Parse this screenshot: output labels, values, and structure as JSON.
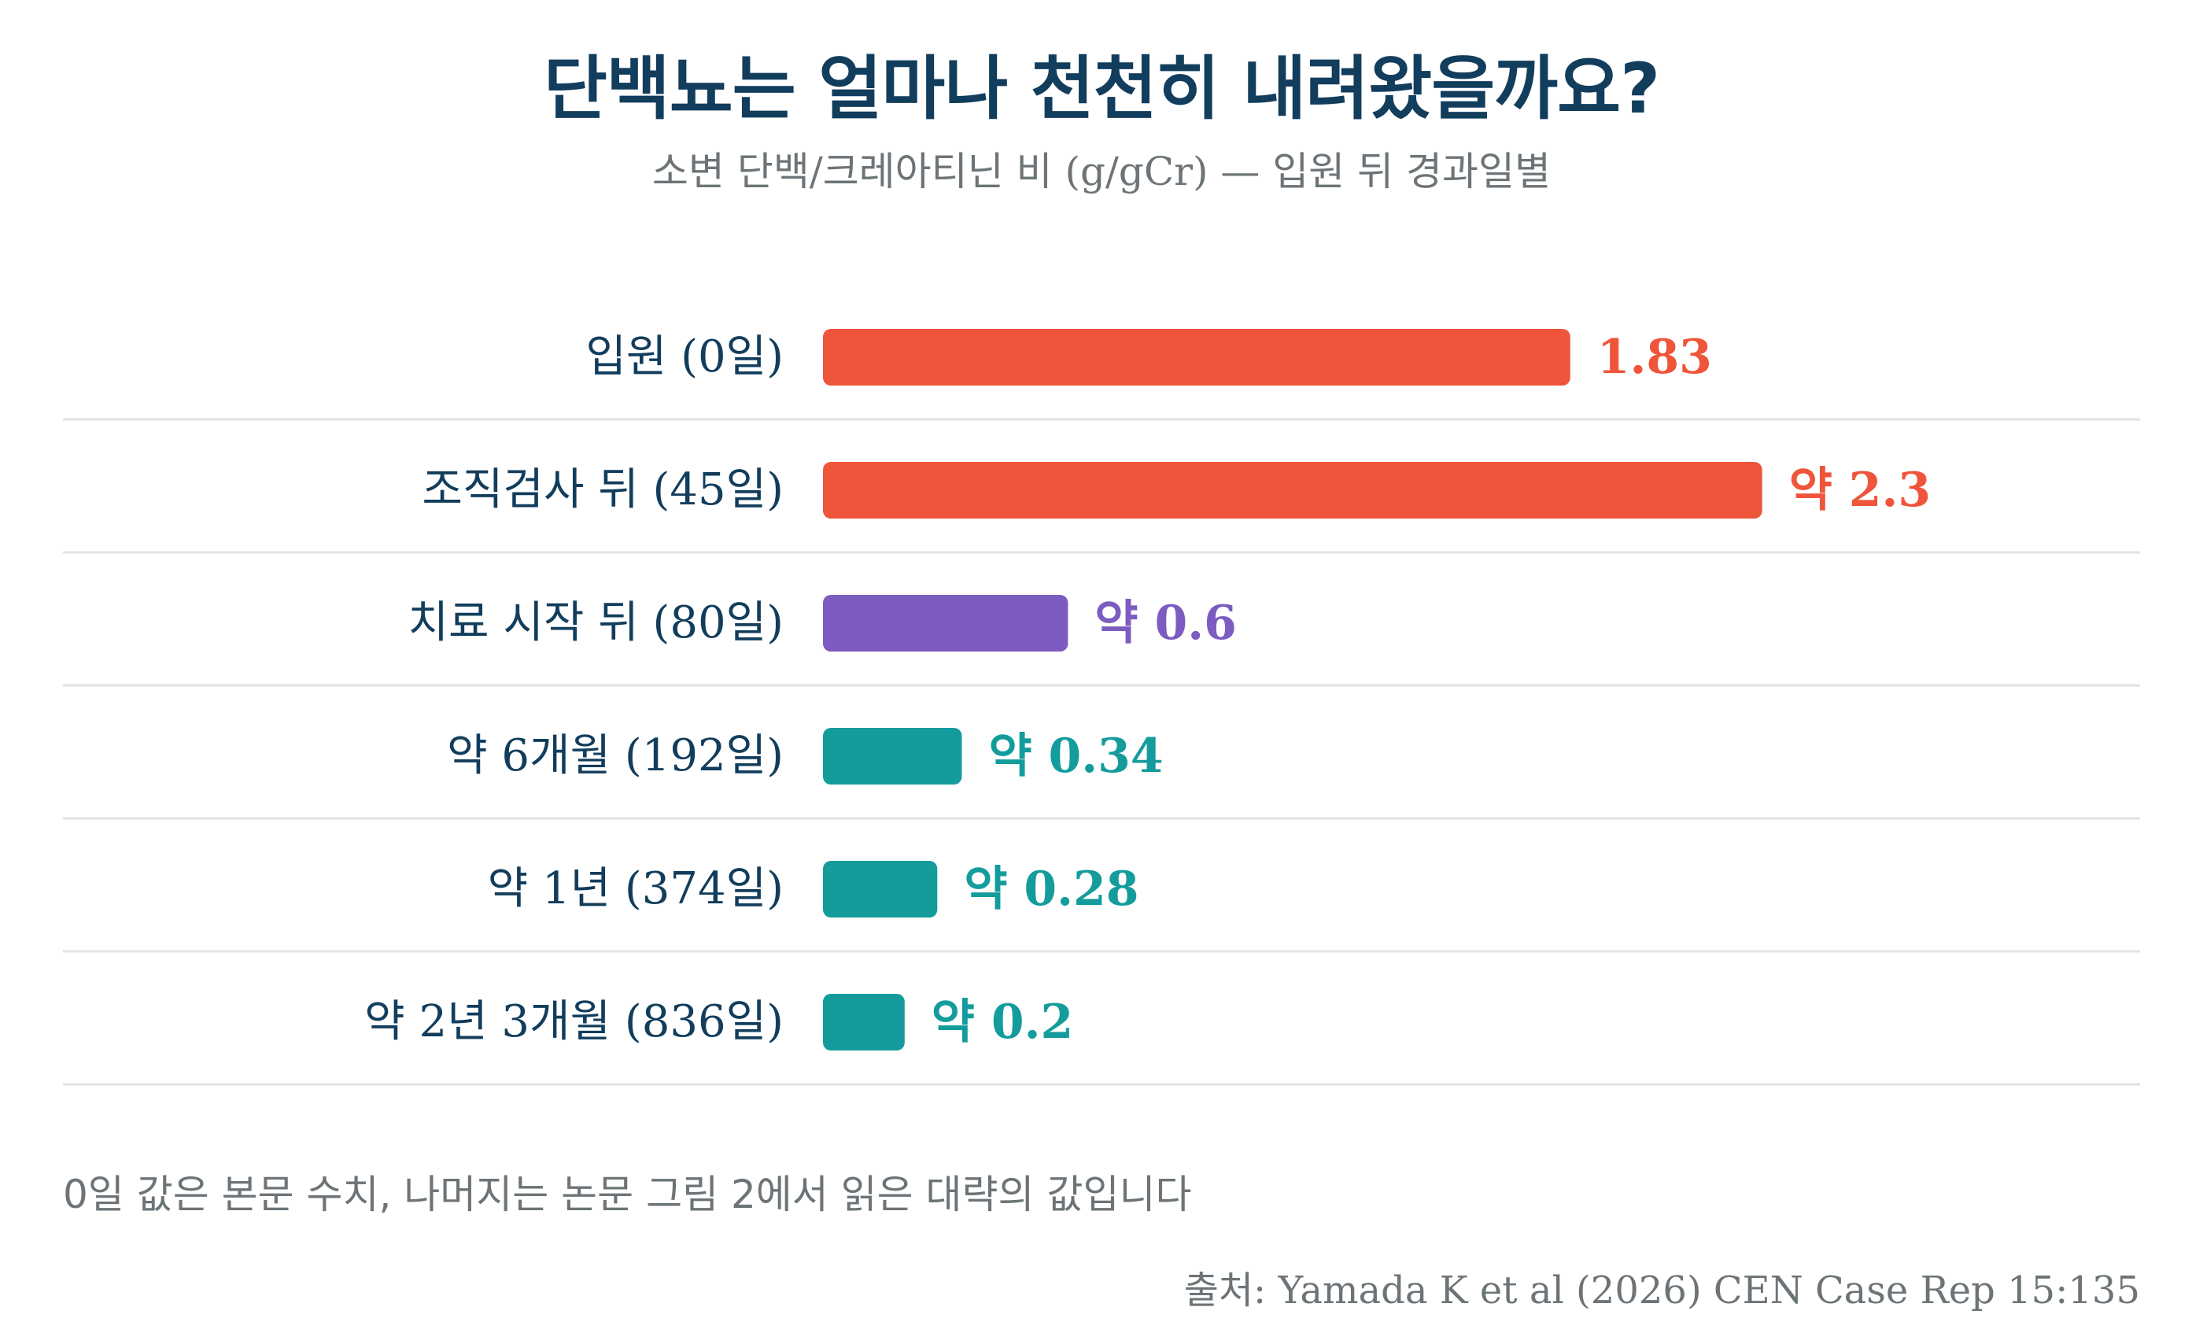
{
  "chart_data": {
    "type": "bar",
    "orientation": "horizontal",
    "title": "단백뇨는 얼마나 천천히 내려왔을까요?",
    "subtitle": "소변 단백/크레아티닌 비 (g/gCr) — 입원 뒤 경과일별",
    "categories": [
      "입원 (0일)",
      "조직검사 뒤 (45일)",
      "치료 시작 뒤 (80일)",
      "약 6개월 (192일)",
      "약 1년 (374일)",
      "약 2년 3개월 (836일)"
    ],
    "values": [
      1.83,
      2.3,
      0.6,
      0.34,
      0.28,
      0.2
    ],
    "data_labels": [
      "1.83",
      "약 2.3",
      "약 0.6",
      "약 0.34",
      "약 0.28",
      "약 0.2"
    ],
    "bar_colors": [
      "#ef553b",
      "#ef553b",
      "#7c5cc0",
      "#149c9c",
      "#149c9c",
      "#149c9c"
    ],
    "xlim": [
      0,
      2.3
    ],
    "grid": false,
    "footnote": "0일 값은 본문 수치, 나머지는 논문 그림 2에서 읽은 대략의 값입니다",
    "source": "출처: Yamada K et al (2026) CEN Case Rep 15:135"
  },
  "colors": {
    "title": "#123d5c",
    "category_text": "#123d5c",
    "muted_text": "#6d7478",
    "separator": "#e3e3e3"
  }
}
